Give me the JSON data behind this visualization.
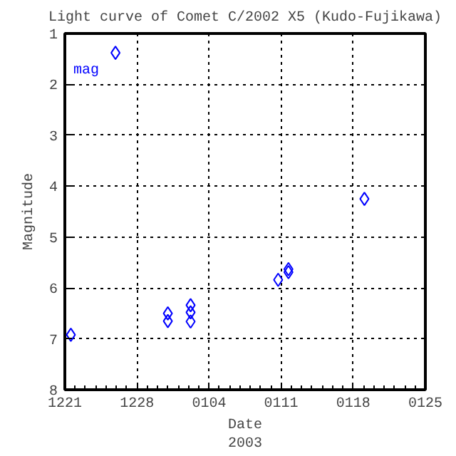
{
  "chart_data": {
    "type": "scatter",
    "title": "Light curve of Comet C/2002 X5 (Kudo-Fujikawa)",
    "xlabel": "Date\n2003",
    "ylabel": "Magnitude",
    "series": [
      {
        "name": "mag",
        "color": "#0000ff",
        "x": [
          "2002-12-21T14:00",
          "2002-12-25T22:00",
          "2002-12-31T00:00",
          "2002-12-31T00:00",
          "2003-01-02T05:00",
          "2003-01-02T05:00",
          "2003-01-02T05:00",
          "2003-01-10T17:00",
          "2003-01-11T17:00",
          "2003-01-11T17:00",
          "2003-01-19T02:00"
        ],
        "values": [
          6.92,
          1.38,
          6.5,
          6.65,
          6.34,
          6.48,
          6.66,
          5.84,
          5.69,
          5.63,
          4.25
        ]
      }
    ],
    "xlim": [
      "2002-12-21",
      "2003-01-25"
    ],
    "xticks": [
      {
        "value": "2002-12-21",
        "label": "1221"
      },
      {
        "value": "2002-12-28",
        "label": "1228"
      },
      {
        "value": "2003-01-04",
        "label": "0104"
      },
      {
        "value": "2003-01-11",
        "label": "0111"
      },
      {
        "value": "2003-01-18",
        "label": "0118"
      },
      {
        "value": "2003-01-25",
        "label": "0125"
      }
    ],
    "ylim": [
      8,
      1
    ],
    "yticks": [
      1,
      2,
      3,
      4,
      5,
      6,
      7,
      8
    ],
    "grid": true,
    "marker": "diamond",
    "legend": "top left"
  }
}
